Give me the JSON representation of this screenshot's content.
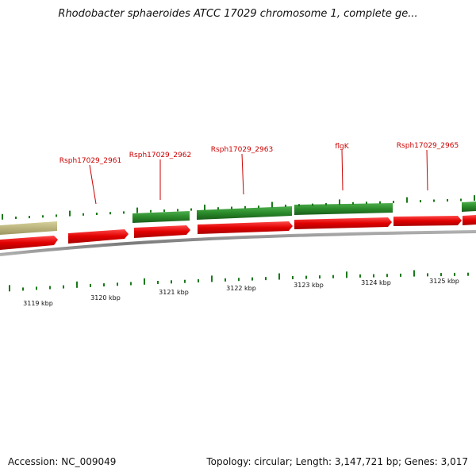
{
  "title": "Rhodobacter sphaeroides ATCC 17029 chromosome 1, complete ge...",
  "footer": {
    "accession": "Accession: NC_009049",
    "summary": "Topology: circular; Length: 3,147,721 bp; Genes: 3,017"
  },
  "colors": {
    "forward_gene": "#2a8a2a",
    "reverse_gene": "#e00000",
    "other_feature": "#bdb57a",
    "backbone": "#8a8a8a",
    "tick": "#1a7a1a",
    "gene_label": "#cc0000"
  },
  "kbp_labels": [
    "3119 kbp",
    "3120 kbp",
    "3121 kbp",
    "3122 kbp",
    "3123 kbp",
    "3124 kbp",
    "3125 kbp"
  ],
  "gene_labels": [
    "Rsph17029_2961",
    "Rsph17029_2962",
    "Rsph17029_2963",
    "flgK",
    "Rsph17029_2965"
  ]
}
